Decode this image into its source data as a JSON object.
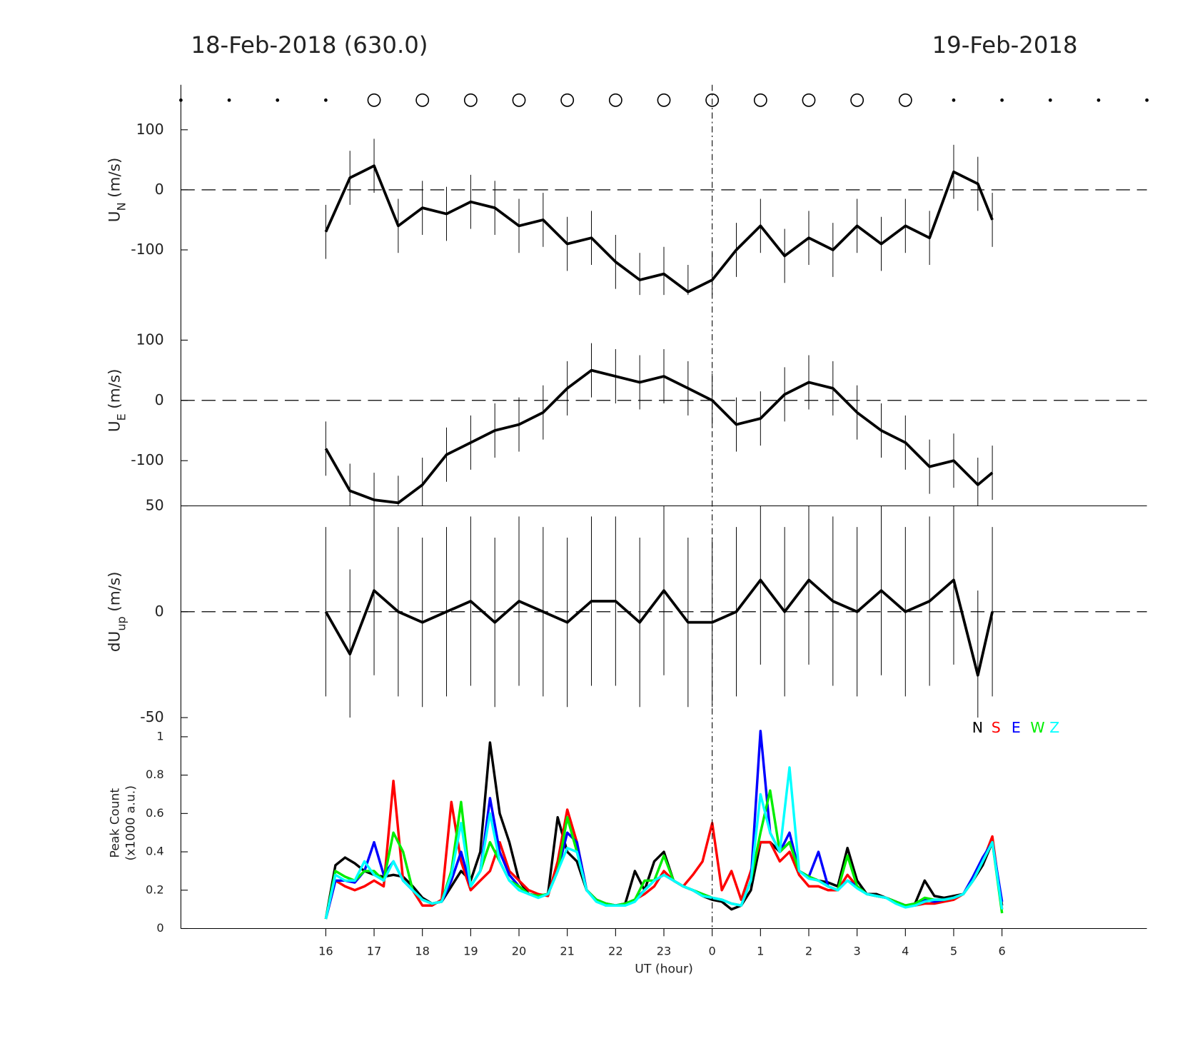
{
  "titles": [
    "18-Feb-2018 (630.0)",
    "19-Feb-2018"
  ],
  "vline": 24,
  "chart_data": [
    {
      "type": "line",
      "ylabel": "U",
      "ylabel_sub": "N",
      "ylabel_unit": "(m/s)",
      "xlim": [
        13,
        33
      ],
      "ylim": [
        -175,
        175
      ],
      "yticks": [
        -100,
        0,
        100
      ],
      "zero_line": true,
      "circles": [
        17,
        18,
        19,
        20,
        21,
        22,
        23,
        24,
        25,
        26,
        27,
        28
      ],
      "dots": [
        13,
        14,
        15,
        16,
        29,
        30,
        31,
        32,
        33
      ],
      "x": [
        16,
        16.5,
        17,
        17.5,
        18,
        18.5,
        19,
        19.5,
        20,
        20.5,
        21,
        21.5,
        22,
        22.5,
        23,
        23.5,
        24,
        24.5,
        25,
        25.5,
        26,
        26.5,
        27,
        27.5,
        28,
        28.5,
        29,
        29.5,
        29.8
      ],
      "series": [
        {
          "color": "#000000",
          "values": [
            -70,
            20,
            40,
            -60,
            -30,
            -40,
            -20,
            -30,
            -60,
            -50,
            -90,
            -80,
            -120,
            -150,
            -140,
            -170,
            -150,
            -100,
            -60,
            -110,
            -80,
            -100,
            -60,
            -90,
            -60,
            -80,
            30,
            10,
            -50
          ],
          "errors": [
            45,
            45,
            45,
            45,
            45,
            45,
            45,
            45,
            45,
            45,
            45,
            45,
            45,
            45,
            45,
            45,
            45,
            45,
            45,
            45,
            45,
            45,
            45,
            45,
            45,
            45,
            45,
            45,
            45
          ]
        }
      ]
    },
    {
      "type": "line",
      "ylabel": "U",
      "ylabel_sub": "E",
      "ylabel_unit": "(m/s)",
      "xlim": [
        13,
        33
      ],
      "ylim": [
        -175,
        175
      ],
      "yticks": [
        -100,
        0,
        100
      ],
      "zero_line": true,
      "x": [
        16,
        16.5,
        17,
        17.5,
        18,
        18.5,
        19,
        19.5,
        20,
        20.5,
        21,
        21.5,
        22,
        22.5,
        23,
        23.5,
        24,
        24.5,
        25,
        25.5,
        26,
        26.5,
        27,
        27.5,
        28,
        28.5,
        29,
        29.5,
        29.8
      ],
      "series": [
        {
          "color": "#000000",
          "values": [
            -80,
            -150,
            -165,
            -170,
            -140,
            -90,
            -70,
            -50,
            -40,
            -20,
            20,
            50,
            40,
            30,
            40,
            20,
            0,
            -40,
            -30,
            10,
            30,
            20,
            -20,
            -50,
            -70,
            -110,
            -100,
            -140,
            -120
          ],
          "errors": [
            45,
            45,
            45,
            45,
            45,
            45,
            45,
            45,
            45,
            45,
            45,
            45,
            45,
            45,
            45,
            45,
            45,
            45,
            45,
            45,
            45,
            45,
            45,
            45,
            45,
            45,
            45,
            45,
            45
          ]
        }
      ]
    },
    {
      "type": "line",
      "ylabel": "dU",
      "ylabel_sub": "up",
      "ylabel_unit": "(m/s)",
      "xlim": [
        13,
        33
      ],
      "ylim": [
        -50,
        50
      ],
      "yticks": [
        -50,
        0,
        50
      ],
      "zero_line": true,
      "x": [
        16,
        16.5,
        17,
        17.5,
        18,
        18.5,
        19,
        19.5,
        20,
        20.5,
        21,
        21.5,
        22,
        22.5,
        23,
        23.5,
        24,
        24.5,
        25,
        25.5,
        26,
        26.5,
        27,
        27.5,
        28,
        28.5,
        29,
        29.5,
        29.8
      ],
      "series": [
        {
          "color": "#000000",
          "values": [
            0,
            -20,
            10,
            0,
            -5,
            0,
            5,
            -5,
            5,
            0,
            -5,
            5,
            5,
            -5,
            10,
            -5,
            -5,
            0,
            15,
            0,
            15,
            5,
            0,
            10,
            0,
            5,
            15,
            -30,
            0
          ],
          "errors": [
            40,
            40,
            40,
            40,
            40,
            40,
            40,
            40,
            40,
            40,
            40,
            40,
            40,
            40,
            40,
            40,
            40,
            40,
            40,
            40,
            40,
            40,
            40,
            40,
            40,
            40,
            40,
            40,
            40
          ]
        }
      ]
    },
    {
      "type": "line",
      "ylabel": [
        "Peak Count",
        "(x1000 a.u.)"
      ],
      "xlabel": "UT (hour)",
      "xlim": [
        13,
        33
      ],
      "ylim": [
        0,
        1.1
      ],
      "yticks": [
        0,
        0.2,
        0.4,
        0.6,
        0.8,
        1
      ],
      "xticks": [
        16,
        17,
        18,
        19,
        20,
        21,
        22,
        23,
        {
          "value": 24,
          "label": "0"
        },
        {
          "value": 25,
          "label": "1"
        },
        {
          "value": 26,
          "label": "2"
        },
        {
          "value": 27,
          "label": "3"
        },
        {
          "value": 28,
          "label": "4"
        },
        {
          "value": 29,
          "label": "5"
        },
        {
          "value": 30,
          "label": "6"
        }
      ],
      "legend": "upper right",
      "x": [
        16,
        16.2,
        16.4,
        16.6,
        16.8,
        17,
        17.2,
        17.4,
        17.6,
        17.8,
        18,
        18.2,
        18.4,
        18.6,
        18.8,
        19,
        19.2,
        19.4,
        19.6,
        19.8,
        20,
        20.2,
        20.4,
        20.6,
        20.8,
        21,
        21.2,
        21.4,
        21.6,
        21.8,
        22,
        22.2,
        22.4,
        22.6,
        22.8,
        23,
        23.2,
        23.4,
        23.6,
        23.8,
        24,
        24.2,
        24.4,
        24.6,
        24.8,
        25,
        25.2,
        25.4,
        25.6,
        25.8,
        26,
        26.2,
        26.4,
        26.6,
        26.8,
        27,
        27.2,
        27.4,
        27.6,
        27.8,
        28,
        28.2,
        28.4,
        28.6,
        28.8,
        29,
        29.2,
        29.4,
        29.6,
        29.8,
        30
      ],
      "series": [
        {
          "name": "N",
          "color": "#000000",
          "values": [
            0.05,
            0.33,
            0.37,
            0.34,
            0.3,
            0.28,
            0.27,
            0.28,
            0.27,
            0.22,
            0.16,
            0.13,
            0.14,
            0.22,
            0.3,
            0.25,
            0.4,
            0.97,
            0.6,
            0.45,
            0.25,
            0.18,
            0.17,
            0.18,
            0.58,
            0.4,
            0.35,
            0.2,
            0.15,
            0.12,
            0.12,
            0.13,
            0.3,
            0.2,
            0.35,
            0.4,
            0.25,
            0.22,
            0.2,
            0.17,
            0.15,
            0.14,
            0.1,
            0.12,
            0.2,
            0.45,
            0.45,
            0.4,
            0.45,
            0.3,
            0.27,
            0.25,
            0.24,
            0.22,
            0.42,
            0.25,
            0.18,
            0.18,
            0.16,
            0.14,
            0.12,
            0.13,
            0.25,
            0.17,
            0.16,
            0.17,
            0.18,
            0.25,
            0.33,
            0.45,
            0.12
          ]
        },
        {
          "name": "S",
          "color": "#ff0000",
          "values": [
            0.05,
            0.25,
            0.22,
            0.2,
            0.22,
            0.25,
            0.22,
            0.77,
            0.25,
            0.2,
            0.12,
            0.12,
            0.15,
            0.66,
            0.35,
            0.2,
            0.25,
            0.3,
            0.45,
            0.3,
            0.25,
            0.2,
            0.18,
            0.17,
            0.35,
            0.62,
            0.45,
            0.2,
            0.15,
            0.13,
            0.12,
            0.13,
            0.15,
            0.18,
            0.22,
            0.3,
            0.25,
            0.22,
            0.28,
            0.35,
            0.55,
            0.2,
            0.3,
            0.15,
            0.3,
            0.45,
            0.45,
            0.35,
            0.4,
            0.28,
            0.22,
            0.22,
            0.2,
            0.2,
            0.28,
            0.22,
            0.18,
            0.17,
            0.16,
            0.14,
            0.12,
            0.12,
            0.13,
            0.13,
            0.14,
            0.15,
            0.18,
            0.25,
            0.35,
            0.48,
            0.1
          ]
        },
        {
          "name": "E",
          "color": "#0000ff",
          "values": [
            0.05,
            0.25,
            0.25,
            0.24,
            0.3,
            0.45,
            0.28,
            0.35,
            0.25,
            0.2,
            0.15,
            0.13,
            0.14,
            0.25,
            0.4,
            0.22,
            0.3,
            0.68,
            0.4,
            0.28,
            0.22,
            0.18,
            0.17,
            0.18,
            0.3,
            0.5,
            0.45,
            0.2,
            0.15,
            0.13,
            0.12,
            0.13,
            0.15,
            0.2,
            0.25,
            0.28,
            0.25,
            0.22,
            0.2,
            0.18,
            0.16,
            0.15,
            0.13,
            0.12,
            0.25,
            1.03,
            0.5,
            0.4,
            0.5,
            0.3,
            0.27,
            0.4,
            0.22,
            0.2,
            0.25,
            0.22,
            0.18,
            0.17,
            0.16,
            0.14,
            0.12,
            0.12,
            0.15,
            0.14,
            0.15,
            0.16,
            0.18,
            0.27,
            0.37,
            0.45,
            0.14
          ]
        },
        {
          "name": "W",
          "color": "#00ee00",
          "values": [
            0.05,
            0.3,
            0.27,
            0.25,
            0.3,
            0.3,
            0.25,
            0.5,
            0.4,
            0.2,
            0.15,
            0.13,
            0.14,
            0.3,
            0.66,
            0.22,
            0.3,
            0.45,
            0.35,
            0.25,
            0.22,
            0.18,
            0.17,
            0.18,
            0.3,
            0.58,
            0.4,
            0.2,
            0.15,
            0.13,
            0.12,
            0.13,
            0.15,
            0.25,
            0.25,
            0.38,
            0.25,
            0.22,
            0.2,
            0.18,
            0.16,
            0.15,
            0.13,
            0.12,
            0.25,
            0.5,
            0.72,
            0.4,
            0.45,
            0.3,
            0.27,
            0.25,
            0.22,
            0.2,
            0.38,
            0.22,
            0.18,
            0.17,
            0.16,
            0.14,
            0.12,
            0.13,
            0.16,
            0.15,
            0.15,
            0.16,
            0.18,
            0.25,
            0.35,
            0.45,
            0.08
          ]
        },
        {
          "name": "Z",
          "color": "#00ffff",
          "values": [
            0.05,
            0.28,
            0.25,
            0.25,
            0.35,
            0.28,
            0.25,
            0.35,
            0.25,
            0.2,
            0.15,
            0.13,
            0.14,
            0.28,
            0.55,
            0.22,
            0.3,
            0.6,
            0.35,
            0.25,
            0.2,
            0.18,
            0.16,
            0.18,
            0.3,
            0.42,
            0.4,
            0.2,
            0.14,
            0.12,
            0.12,
            0.12,
            0.14,
            0.2,
            0.25,
            0.28,
            0.25,
            0.22,
            0.2,
            0.17,
            0.16,
            0.15,
            0.13,
            0.12,
            0.25,
            0.7,
            0.5,
            0.4,
            0.84,
            0.3,
            0.26,
            0.25,
            0.22,
            0.2,
            0.25,
            0.21,
            0.18,
            0.17,
            0.16,
            0.13,
            0.11,
            0.12,
            0.14,
            0.15,
            0.15,
            0.16,
            0.18,
            0.25,
            0.35,
            0.45,
            0.1
          ]
        }
      ]
    }
  ]
}
